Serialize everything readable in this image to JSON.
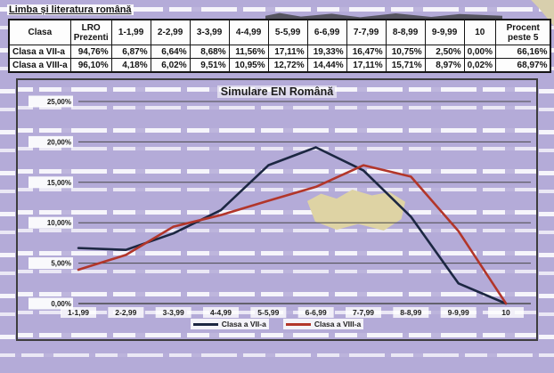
{
  "page": {
    "heading": "Limba și literatura română"
  },
  "colors": {
    "page_background": "#b4abd8",
    "series_vii": "#1c2742",
    "series_viii": "#b2362a",
    "gridline": "#4a4a4a",
    "tan_patch": "#ded3a4"
  },
  "table": {
    "columns": [
      "Clasa",
      "LRO Prezenti",
      "1-1,99",
      "2-2,99",
      "3-3,99",
      "4-4,99",
      "5-5,99",
      "6-6,99",
      "7-7,99",
      "8-8,99",
      "9-9,99",
      "10",
      "Procent peste 5"
    ],
    "rows": [
      [
        "Clasa a VII-a",
        "94,76%",
        "6,87%",
        "6,64%",
        "8,68%",
        "11,56%",
        "17,11%",
        "19,33%",
        "16,47%",
        "10,75%",
        "2,50%",
        "0,00%",
        "66,16%"
      ],
      [
        "Clasa a VIII-a",
        "96,10%",
        "4,18%",
        "6,02%",
        "9,51%",
        "10,95%",
        "12,72%",
        "14,44%",
        "17,11%",
        "15,71%",
        "8,97%",
        "0,02%",
        "68,97%"
      ]
    ]
  },
  "chart_data": {
    "type": "line",
    "title": "Simulare EN Română",
    "categories": [
      "1-1,99",
      "2-2,99",
      "3-3,99",
      "4-4,99",
      "5-5,99",
      "6-6,99",
      "7-7,99",
      "8-8,99",
      "9-9,99",
      "10"
    ],
    "series": [
      {
        "name": "Clasa a VII-a",
        "color": "#1c2742",
        "values": [
          6.87,
          6.64,
          8.68,
          11.56,
          17.11,
          19.33,
          16.47,
          10.75,
          2.5,
          0.0
        ]
      },
      {
        "name": "Clasa a VIII-a",
        "color": "#b2362a",
        "values": [
          4.18,
          6.02,
          9.51,
          10.95,
          12.72,
          14.44,
          17.11,
          15.71,
          8.97,
          0.02
        ]
      }
    ],
    "xlabel": "",
    "ylabel": "",
    "ylim": [
      0,
      25
    ],
    "ytick_step": 5,
    "ytick_labels": [
      "0,00%",
      "5,00%",
      "10,00%",
      "15,00%",
      "20,00%",
      "25,00%"
    ],
    "grid": true,
    "legend_position": "bottom"
  }
}
